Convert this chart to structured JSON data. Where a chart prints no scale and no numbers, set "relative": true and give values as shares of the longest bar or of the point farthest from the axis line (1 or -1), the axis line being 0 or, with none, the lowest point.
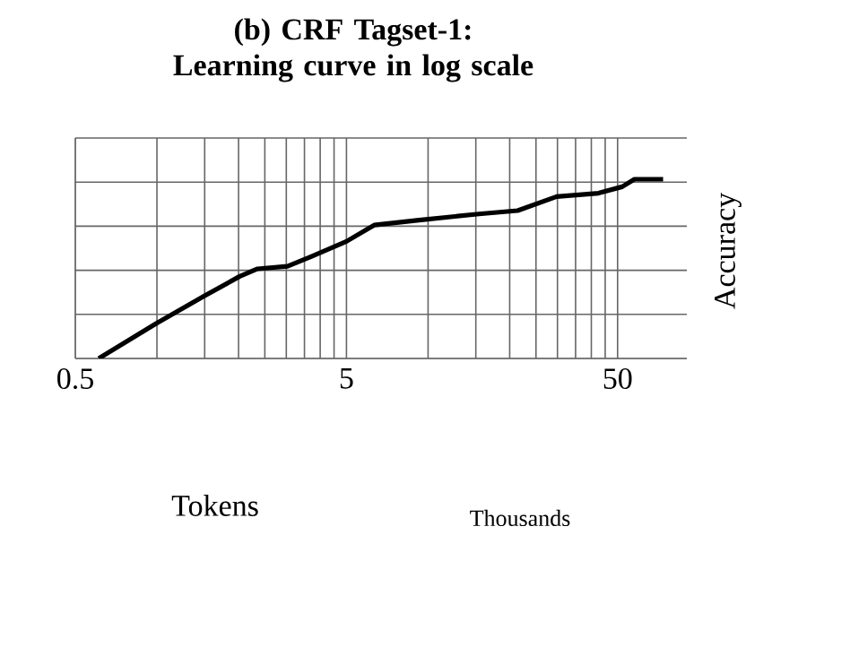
{
  "chart_data": {
    "type": "line",
    "title": "(b) CRF Tagset-1: Learning curve in log scale",
    "xlabel": "Tokens",
    "ylabel": "Accuracy",
    "annotations": [
      "Thousands"
    ],
    "x": [
      0.61,
      0.99,
      1.49,
      2.02,
      2.35,
      3.03,
      3.72,
      5,
      6.33,
      9.27,
      15.4,
      21.4,
      29.8,
      42.5,
      52,
      57.7,
      73.6
    ],
    "series": [
      {
        "color": "#000000",
        "values": [
          0,
          0.194,
          0.347,
          0.458,
          0.5,
          0.514,
          0.569,
          0.653,
          0.744,
          0.772,
          0.806,
          0.825,
          0.903,
          0.922,
          0.958,
          1,
          1
        ]
      }
    ],
    "relative": true,
    "log": "x",
    "xlim": [
      0.5,
      90
    ],
    "xticks": [
      0.5,
      5,
      50
    ],
    "grid": true,
    "tick_labels": "x",
    "marker": "none",
    "line_style": "solid"
  }
}
